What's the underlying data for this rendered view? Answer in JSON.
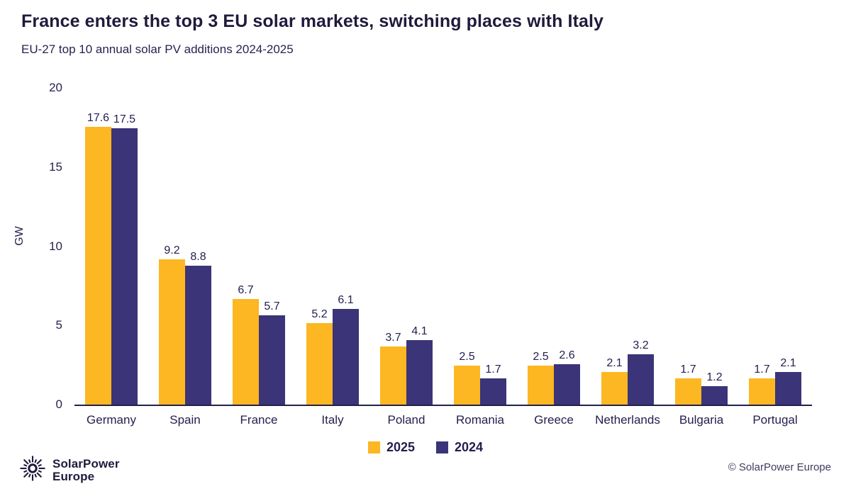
{
  "header": {
    "title": "France enters the top 3 EU solar markets, switching places with Italy",
    "subtitle": "EU-27 top 10 annual solar PV additions 2024-2025"
  },
  "chart_data": {
    "type": "bar",
    "categories": [
      "Germany",
      "Spain",
      "France",
      "Italy",
      "Poland",
      "Romania",
      "Greece",
      "Netherlands",
      "Bulgaria",
      "Portugal"
    ],
    "series": [
      {
        "name": "2025",
        "color": "#FCB722",
        "values": [
          17.6,
          9.2,
          6.7,
          5.2,
          3.7,
          2.5,
          2.5,
          2.1,
          1.7,
          1.7
        ]
      },
      {
        "name": "2024",
        "color": "#3B3478",
        "values": [
          17.5,
          8.8,
          5.7,
          6.1,
          4.1,
          1.7,
          2.6,
          3.2,
          1.2,
          2.1
        ]
      }
    ],
    "title": "France enters the top 3 EU solar markets, switching places with Italy",
    "xlabel": "",
    "ylabel": "GW",
    "ylim": [
      0,
      20
    ],
    "yticks": [
      0,
      5,
      10,
      15,
      20
    ],
    "grid": false,
    "legend_position": "bottom",
    "value_labels": true
  },
  "footer": {
    "logo_line1": "SolarPower",
    "logo_line2": "Europe",
    "copyright": "© SolarPower Europe"
  },
  "colors": {
    "navy": "#1E1B3C",
    "yellow_2025": "#FCB722",
    "purple_2024": "#3B3478",
    "axis": "#23204A",
    "muted_text": "#3F3D5E"
  }
}
